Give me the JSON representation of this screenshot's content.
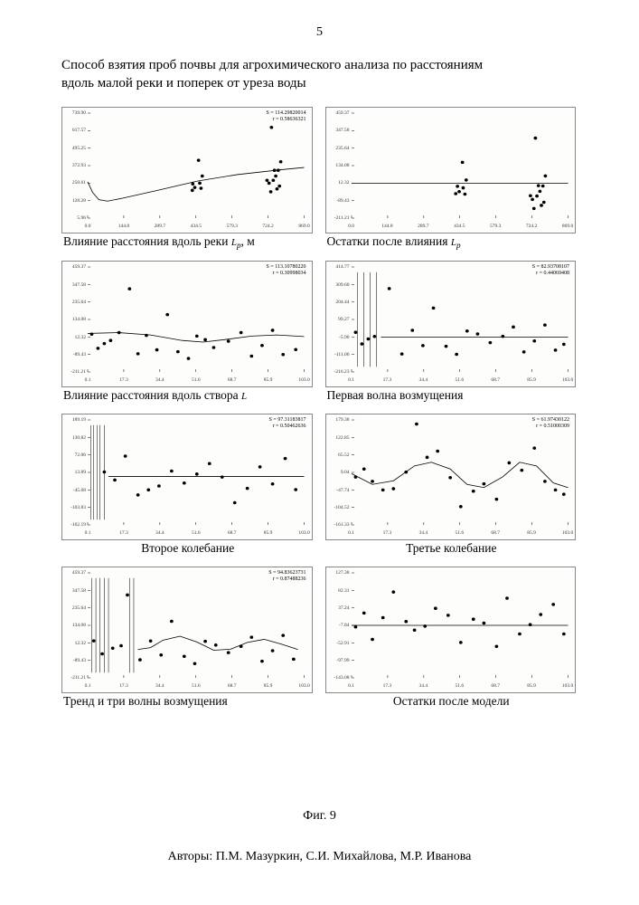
{
  "page_number": "5",
  "title_line1": "Способ взятия проб почвы для агрохимического анализа по расстояниям",
  "title_line2": "вдоль малой реки и поперек от уреза воды",
  "figure_label": "Фиг. 9",
  "authors": "Авторы: П.М. Мазуркин, С.И. Михайлова, М.Р. Иванова",
  "river_sym": "L",
  "river_sub": "р",
  "unit_m": ", м",
  "charts": [
    {
      "id": "c0",
      "caption": "Влияние расстояния вдоль реки ",
      "append_sym": true,
      "append_unit": true,
      "stats_s": "S = 114.29820014",
      "stats_r": "r = 0.58636321",
      "yticks": [
        "739.90",
        "617.57",
        "495.25",
        "372.93",
        "250.61",
        "128.28",
        "5.96"
      ],
      "xticks": [
        "0.0",
        "144.8",
        "289.7",
        "434.5",
        "579.3",
        "724.2",
        "869.0"
      ],
      "xlim": [
        0,
        869
      ],
      "ylim": [
        5.96,
        739.9
      ],
      "curve": [
        [
          0,
          260
        ],
        [
          20,
          185
        ],
        [
          45,
          135
        ],
        [
          80,
          125
        ],
        [
          140,
          145
        ],
        [
          280,
          200
        ],
        [
          440,
          265
        ],
        [
          600,
          310
        ],
        [
          780,
          345
        ],
        [
          869,
          360
        ]
      ],
      "points": [
        [
          420,
          200
        ],
        [
          422,
          245
        ],
        [
          430,
          220
        ],
        [
          445,
          410
        ],
        [
          450,
          250
        ],
        [
          455,
          215
        ],
        [
          460,
          300
        ],
        [
          720,
          270
        ],
        [
          728,
          250
        ],
        [
          735,
          190
        ],
        [
          738,
          640
        ],
        [
          745,
          270
        ],
        [
          750,
          340
        ],
        [
          755,
          300
        ],
        [
          760,
          210
        ],
        [
          765,
          340
        ],
        [
          770,
          230
        ],
        [
          775,
          400
        ]
      ],
      "hline": null
    },
    {
      "id": "c1",
      "caption": "Остатки после влияния ",
      "append_sym": true,
      "append_unit": false,
      "stats_s": null,
      "stats_r": null,
      "yticks": [
        "459.37",
        "347.58",
        "235.64",
        "134.08",
        "12.32",
        "-89.43",
        "-211.21"
      ],
      "xticks": [
        "0.0",
        "144.8",
        "289.7",
        "434.5",
        "579.3",
        "724.2",
        "869.0"
      ],
      "xlim": [
        0,
        869
      ],
      "ylim": [
        -211.21,
        459.37
      ],
      "curve": null,
      "hline": 12.32,
      "points": [
        [
          418,
          -55
        ],
        [
          425,
          -8
        ],
        [
          432,
          -42
        ],
        [
          445,
          145
        ],
        [
          448,
          -18
        ],
        [
          455,
          -58
        ],
        [
          460,
          32
        ],
        [
          718,
          -68
        ],
        [
          726,
          -92
        ],
        [
          732,
          -150
        ],
        [
          738,
          300
        ],
        [
          744,
          -70
        ],
        [
          750,
          -4
        ],
        [
          756,
          -40
        ],
        [
          762,
          -130
        ],
        [
          768,
          -6
        ],
        [
          772,
          -110
        ],
        [
          778,
          58
        ]
      ]
    },
    {
      "id": "c2",
      "caption": "Влияние расстояния вдоль створа",
      "append_L": true,
      "stats_s": "S = 113.10780220",
      "stats_r": "r = 0.30998034",
      "yticks": [
        "459.37",
        "347.58",
        "235.64",
        "134.08",
        "12.32",
        "-89.43",
        "-211.21"
      ],
      "xticks": [
        "0.1",
        "17.3",
        "34.4",
        "51.6",
        "68.7",
        "85.9",
        "103.0"
      ],
      "xlim": [
        0.1,
        103
      ],
      "ylim": [
        -211.21,
        459.37
      ],
      "curve": [
        [
          0.1,
          35
        ],
        [
          15,
          40
        ],
        [
          30,
          25
        ],
        [
          45,
          -10
        ],
        [
          55,
          -20
        ],
        [
          65,
          -5
        ],
        [
          78,
          18
        ],
        [
          90,
          25
        ],
        [
          103,
          15
        ]
      ],
      "points": [
        [
          2,
          30
        ],
        [
          5,
          -60
        ],
        [
          8,
          -30
        ],
        [
          11,
          -10
        ],
        [
          15,
          40
        ],
        [
          20,
          320
        ],
        [
          24,
          -95
        ],
        [
          28,
          22
        ],
        [
          33,
          -70
        ],
        [
          38,
          155
        ],
        [
          43,
          -82
        ],
        [
          48,
          -125
        ],
        [
          52,
          18
        ],
        [
          56,
          -5
        ],
        [
          60,
          -55
        ],
        [
          67,
          -15
        ],
        [
          73,
          40
        ],
        [
          78,
          -110
        ],
        [
          83,
          -42
        ],
        [
          88,
          55
        ],
        [
          93,
          -100
        ],
        [
          99,
          -68
        ]
      ],
      "hline": null
    },
    {
      "id": "c3",
      "caption": "Первая волна возмущения",
      "stats_s": "S = 82.93708107",
      "stats_r": "r = 0.44069408",
      "yticks": [
        "414.77",
        "309.60",
        "204.44",
        "99.27",
        "-5.90",
        "-111.06",
        "-216.23"
      ],
      "xticks": [
        "0.1",
        "17.3",
        "34.4",
        "51.6",
        "68.7",
        "85.9",
        "103.0"
      ],
      "xlim": [
        0.1,
        103
      ],
      "ylim": [
        -216.23,
        414.77
      ],
      "spikes_at": [
        3,
        6,
        9,
        12
      ],
      "points": [
        [
          2,
          22
        ],
        [
          5,
          -48
        ],
        [
          8,
          -18
        ],
        [
          11,
          -3
        ],
        [
          18,
          285
        ],
        [
          24,
          -108
        ],
        [
          29,
          34
        ],
        [
          34,
          -58
        ],
        [
          39,
          168
        ],
        [
          45,
          -62
        ],
        [
          50,
          -110
        ],
        [
          55,
          30
        ],
        [
          60,
          12
        ],
        [
          66,
          -40
        ],
        [
          72,
          -2
        ],
        [
          77,
          54
        ],
        [
          82,
          -96
        ],
        [
          87,
          -30
        ],
        [
          92,
          66
        ],
        [
          97,
          -85
        ],
        [
          101,
          -50
        ]
      ],
      "curve": [
        [
          14,
          -6
        ],
        [
          103,
          -6
        ]
      ],
      "hline": null
    },
    {
      "id": "c4",
      "caption": "Второе колебание",
      "caption_center": true,
      "stats_s": "S = 97.31183817",
      "stats_r": "r = 0.50462636",
      "yticks": [
        "189.19",
        "130.82",
        "72.06",
        "13.89",
        "-45.68",
        "-103.83",
        "-162.19"
      ],
      "xticks": [
        "0.1",
        "17.3",
        "34.4",
        "51.6",
        "68.7",
        "85.9",
        "103.0"
      ],
      "xlim": [
        0.1,
        103
      ],
      "ylim": [
        -162.19,
        189.19
      ],
      "spikes_at": [
        1.5,
        3,
        4.5,
        6,
        8
      ],
      "points": [
        [
          8,
          15
        ],
        [
          13,
          -12
        ],
        [
          18,
          68
        ],
        [
          24,
          -62
        ],
        [
          29,
          -45
        ],
        [
          34,
          -32
        ],
        [
          40,
          18
        ],
        [
          46,
          -22
        ],
        [
          52,
          8
        ],
        [
          58,
          43
        ],
        [
          64,
          -2
        ],
        [
          70,
          -88
        ],
        [
          76,
          -40
        ],
        [
          82,
          32
        ],
        [
          88,
          -25
        ],
        [
          94,
          60
        ],
        [
          99,
          -44
        ]
      ],
      "curve": [
        [
          10,
          0
        ],
        [
          103,
          0
        ]
      ],
      "hline": null
    },
    {
      "id": "c5",
      "caption": "Третье колебание",
      "caption_center": true,
      "stats_s": "S = 61.97430122",
      "stats_r": "r = 0.51000309",
      "yticks": [
        "179.38",
        "122.85",
        "65.52",
        "9.04",
        "-47.74",
        "-104.52",
        "-161.33"
      ],
      "xticks": [
        "0.1",
        "17.3",
        "34.4",
        "51.6",
        "68.7",
        "85.9",
        "103.0"
      ],
      "xlim": [
        0.1,
        103
      ],
      "ylim": [
        -161.33,
        179.38
      ],
      "curve": [
        [
          0.1,
          5
        ],
        [
          10,
          -30
        ],
        [
          20,
          -18
        ],
        [
          30,
          30
        ],
        [
          38,
          42
        ],
        [
          47,
          20
        ],
        [
          55,
          -30
        ],
        [
          63,
          -40
        ],
        [
          72,
          -5
        ],
        [
          80,
          42
        ],
        [
          88,
          30
        ],
        [
          96,
          -25
        ],
        [
          103,
          -40
        ]
      ],
      "points": [
        [
          2,
          -6
        ],
        [
          6,
          20
        ],
        [
          10,
          -20
        ],
        [
          15,
          -48
        ],
        [
          20,
          -44
        ],
        [
          26,
          10
        ],
        [
          31,
          166
        ],
        [
          36,
          58
        ],
        [
          41,
          78
        ],
        [
          47,
          -8
        ],
        [
          52,
          -102
        ],
        [
          58,
          -52
        ],
        [
          63,
          -28
        ],
        [
          69,
          -78
        ],
        [
          75,
          40
        ],
        [
          81,
          16
        ],
        [
          87,
          88
        ],
        [
          92,
          -20
        ],
        [
          97,
          -48
        ],
        [
          101,
          -62
        ]
      ],
      "hline": null
    },
    {
      "id": "c6",
      "caption": "Тренд и три волны возмущения",
      "stats_s": "S = 94.83623731",
      "stats_r": "r = 0.87488236",
      "yticks": [
        "459.37",
        "347.58",
        "235.64",
        "134.08",
        "12.32",
        "-89.43",
        "-211.21"
      ],
      "xticks": [
        "0.1",
        "17.3",
        "34.4",
        "51.6",
        "68.7",
        "85.9",
        "103.0"
      ],
      "xlim": [
        0.1,
        103
      ],
      "ylim": [
        -211.21,
        459.37
      ],
      "spikes_at": [
        2,
        4,
        6,
        8,
        10,
        20,
        22
      ],
      "curve": [
        [
          24,
          -30
        ],
        [
          30,
          -18
        ],
        [
          36,
          30
        ],
        [
          44,
          55
        ],
        [
          52,
          18
        ],
        [
          60,
          -35
        ],
        [
          68,
          -28
        ],
        [
          76,
          15
        ],
        [
          84,
          35
        ],
        [
          92,
          5
        ],
        [
          100,
          -30
        ]
      ],
      "points": [
        [
          3,
          25
        ],
        [
          7,
          -58
        ],
        [
          12,
          -22
        ],
        [
          16,
          -6
        ],
        [
          19,
          318
        ],
        [
          25,
          -96
        ],
        [
          30,
          24
        ],
        [
          35,
          -65
        ],
        [
          40,
          150
        ],
        [
          46,
          -74
        ],
        [
          51,
          -120
        ],
        [
          56,
          22
        ],
        [
          61,
          -2
        ],
        [
          67,
          -50
        ],
        [
          73,
          -10
        ],
        [
          78,
          48
        ],
        [
          83,
          -105
        ],
        [
          88,
          -38
        ],
        [
          93,
          60
        ],
        [
          98,
          -92
        ]
      ],
      "hline": null
    },
    {
      "id": "c7",
      "caption": "Остатки после модели",
      "caption_center": true,
      "stats_s": null,
      "stats_r": null,
      "yticks": [
        "127.38",
        "82.31",
        "37.24",
        "-7.84",
        "-52.91",
        "-97.99",
        "-143.08"
      ],
      "xticks": [
        "0.1",
        "17.3",
        "34.4",
        "51.6",
        "68.7",
        "85.9",
        "103.0"
      ],
      "xlim": [
        0.1,
        103
      ],
      "ylim": [
        -143.08,
        127.38
      ],
      "curve": null,
      "hline": -7.84,
      "points": [
        [
          2,
          -12
        ],
        [
          6,
          24
        ],
        [
          10,
          -44
        ],
        [
          15,
          12
        ],
        [
          20,
          78
        ],
        [
          26,
          2
        ],
        [
          30,
          -20
        ],
        [
          35,
          -10
        ],
        [
          40,
          36
        ],
        [
          46,
          18
        ],
        [
          52,
          -52
        ],
        [
          58,
          8
        ],
        [
          63,
          -2
        ],
        [
          69,
          -62
        ],
        [
          74,
          62
        ],
        [
          80,
          -30
        ],
        [
          85,
          -6
        ],
        [
          90,
          20
        ],
        [
          96,
          46
        ],
        [
          101,
          -30
        ]
      ]
    }
  ],
  "colors": {
    "axis": "#000000",
    "grid": "#cccccc",
    "point": "#000000",
    "curve": "#000000"
  },
  "point_radius": 1.8,
  "curve_width": 0.8
}
